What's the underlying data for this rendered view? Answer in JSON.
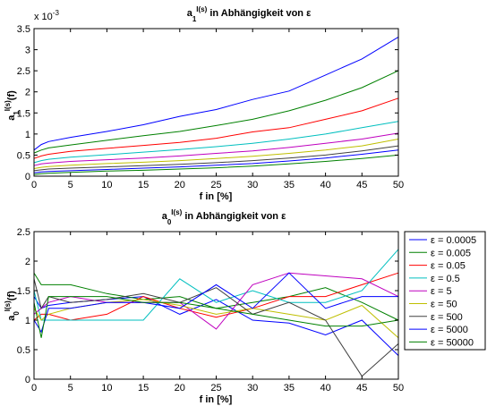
{
  "chart_data": [
    {
      "type": "line",
      "title": {
        "pre": "a",
        "sup": "I(s)",
        "sub": "1",
        "post": " in Abhängigkeit von ε"
      },
      "xlabel": "f in [%]",
      "ylabel": {
        "pre": "a",
        "sup": "I(s)",
        "sub": "1",
        "post": "(f)"
      },
      "exponent_label": "x 10",
      "exponent_value": "-3",
      "xlim": [
        0,
        50
      ],
      "ylim": [
        0,
        3.5
      ],
      "x_ticks": [
        "0",
        "5",
        "10",
        "15",
        "20",
        "25",
        "30",
        "35",
        "40",
        "45",
        "50"
      ],
      "y_ticks": [
        "0",
        "0.5",
        "1",
        "1.5",
        "2",
        "2.5",
        "3",
        "3.5"
      ],
      "x": [
        0,
        1,
        2,
        5,
        10,
        15,
        20,
        25,
        30,
        35,
        40,
        45,
        50
      ],
      "series": [
        {
          "color": "#0000ff",
          "values": [
            0.62,
            0.75,
            0.82,
            0.92,
            1.06,
            1.22,
            1.42,
            1.58,
            1.82,
            2.02,
            2.4,
            2.78,
            3.3
          ]
        },
        {
          "color": "#008000",
          "values": [
            0.55,
            0.62,
            0.67,
            0.74,
            0.85,
            0.96,
            1.06,
            1.2,
            1.35,
            1.55,
            1.8,
            2.1,
            2.5
          ]
        },
        {
          "color": "#ff0000",
          "values": [
            0.42,
            0.48,
            0.52,
            0.59,
            0.66,
            0.73,
            0.8,
            0.9,
            1.05,
            1.15,
            1.35,
            1.55,
            1.85
          ]
        },
        {
          "color": "#00bfbf",
          "values": [
            0.32,
            0.37,
            0.4,
            0.45,
            0.51,
            0.57,
            0.63,
            0.7,
            0.78,
            0.88,
            1.0,
            1.15,
            1.3
          ]
        },
        {
          "color": "#bf00bf",
          "values": [
            0.25,
            0.29,
            0.31,
            0.35,
            0.39,
            0.43,
            0.48,
            0.54,
            0.6,
            0.68,
            0.78,
            0.88,
            1.02
          ]
        },
        {
          "color": "#bfbf00",
          "values": [
            0.18,
            0.21,
            0.23,
            0.26,
            0.3,
            0.33,
            0.37,
            0.42,
            0.47,
            0.54,
            0.62,
            0.72,
            0.88
          ]
        },
        {
          "color": "#404040",
          "values": [
            0.13,
            0.15,
            0.17,
            0.19,
            0.22,
            0.25,
            0.28,
            0.32,
            0.37,
            0.43,
            0.5,
            0.6,
            0.72
          ]
        },
        {
          "color": "#0000ff",
          "values": [
            0.08,
            0.1,
            0.11,
            0.13,
            0.16,
            0.19,
            0.22,
            0.26,
            0.3,
            0.36,
            0.43,
            0.52,
            0.62
          ]
        },
        {
          "color": "#008000",
          "values": [
            0.04,
            0.06,
            0.07,
            0.09,
            0.12,
            0.14,
            0.17,
            0.2,
            0.24,
            0.29,
            0.35,
            0.42,
            0.5
          ]
        }
      ]
    },
    {
      "type": "line",
      "title": {
        "pre": "a",
        "sup": "I(s)",
        "sub": "0",
        "post": " in Abhängigkeit von ε"
      },
      "xlabel": "f in [%]",
      "ylabel": {
        "pre": "a",
        "sup": "I(s)",
        "sub": "0",
        "post": "(f)"
      },
      "xlim": [
        0,
        50
      ],
      "ylim": [
        0,
        2.5
      ],
      "x_ticks": [
        "0",
        "5",
        "10",
        "15",
        "20",
        "25",
        "30",
        "35",
        "40",
        "45",
        "50"
      ],
      "y_ticks": [
        "0",
        "0.5",
        "1",
        "1.5",
        "2",
        "2.5"
      ],
      "x": [
        0,
        1,
        2,
        5,
        10,
        15,
        20,
        25,
        30,
        35,
        40,
        45,
        50
      ],
      "legend_position": "outside-right",
      "series": [
        {
          "name": "ε = 0.0005",
          "color": "#0000ff",
          "values": [
            1.4,
            1.2,
            1.25,
            1.3,
            1.35,
            1.4,
            1.1,
            1.35,
            1.0,
            0.95,
            0.75,
            1.0,
            0.4
          ]
        },
        {
          "name": "ε = 0.005",
          "color": "#008000",
          "values": [
            1.8,
            1.6,
            1.6,
            1.6,
            1.45,
            1.35,
            1.4,
            1.2,
            1.3,
            1.4,
            1.55,
            1.3,
            1.0
          ]
        },
        {
          "name": "ε = 0.05",
          "color": "#ff0000",
          "values": [
            1.0,
            1.1,
            1.1,
            1.0,
            1.1,
            1.4,
            1.2,
            1.05,
            1.2,
            1.4,
            1.4,
            1.6,
            1.8
          ]
        },
        {
          "name": "ε = 0.5",
          "color": "#00bfbf",
          "values": [
            1.5,
            1.0,
            1.0,
            1.0,
            1.0,
            1.0,
            1.7,
            1.3,
            1.5,
            1.3,
            1.3,
            1.5,
            2.2
          ]
        },
        {
          "name": "ε = 5",
          "color": "#bf00bf",
          "values": [
            1.1,
            1.2,
            1.3,
            1.4,
            1.3,
            1.3,
            1.3,
            0.85,
            1.6,
            1.8,
            1.75,
            1.7,
            1.4
          ]
        },
        {
          "name": "ε = 50",
          "color": "#bfbf00",
          "values": [
            1.2,
            1.0,
            1.1,
            1.2,
            1.3,
            1.35,
            1.25,
            1.1,
            1.2,
            1.1,
            1.0,
            1.25,
            0.7
          ]
        },
        {
          "name": "ε = 500",
          "color": "#404040",
          "values": [
            1.7,
            1.2,
            1.4,
            1.3,
            1.35,
            1.45,
            1.3,
            1.55,
            1.1,
            1.3,
            1.0,
            0.05,
            0.6
          ]
        },
        {
          "name": "ε = 5000",
          "color": "#0000ff",
          "values": [
            1.0,
            0.8,
            1.2,
            1.2,
            1.3,
            1.3,
            1.2,
            1.6,
            1.2,
            1.8,
            1.2,
            1.4,
            1.4
          ]
        },
        {
          "name": "ε = 50000",
          "color": "#008000",
          "values": [
            1.3,
            0.7,
            1.4,
            1.4,
            1.4,
            1.3,
            1.3,
            1.2,
            1.1,
            1.0,
            0.9,
            0.9,
            1.0
          ]
        }
      ]
    }
  ]
}
